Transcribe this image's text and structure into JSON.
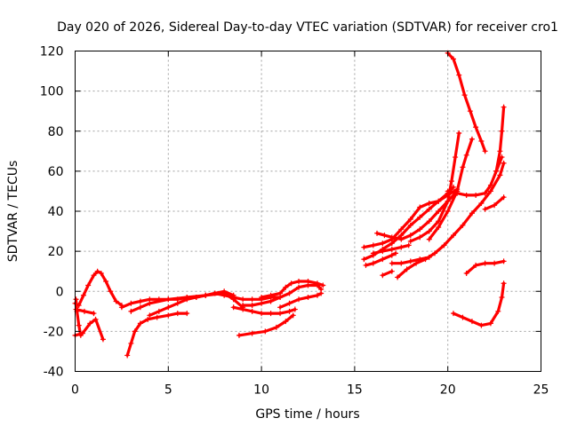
{
  "chart_data": {
    "type": "scatter",
    "title": "Day 020 of 2026, Sidereal Day-to-day VTEC variation (SDTVAR) for receiver cro1",
    "xlabel": "GPS time / hours",
    "ylabel": "SDTVAR / TECUs",
    "xlim": [
      0,
      25
    ],
    "ylim": [
      -40,
      120
    ],
    "xticks": [
      0,
      5,
      10,
      15,
      20,
      25
    ],
    "yticks": [
      -40,
      -20,
      0,
      20,
      40,
      60,
      80,
      100,
      120
    ],
    "xtick_labels": [
      "0",
      "5",
      "10",
      "15",
      "20",
      "25"
    ],
    "ytick_labels": [
      "-40",
      "-20",
      "0",
      "20",
      "40",
      "60",
      "80",
      "100",
      "120"
    ],
    "grid": true,
    "marker": "+",
    "color": "#ff0000",
    "series": [
      {
        "name": "s1",
        "x": [
          0.0,
          0.2,
          0.45,
          0.7,
          1.0,
          1.2,
          1.4,
          1.65,
          1.9,
          2.2,
          2.5
        ],
        "y": [
          -6,
          -7,
          -2,
          3,
          8,
          10,
          9,
          5,
          0,
          -5,
          -7
        ]
      },
      {
        "name": "s2",
        "x": [
          0.0,
          0.4,
          0.8,
          1.1,
          1.5
        ],
        "y": [
          -22,
          -21,
          -16,
          -14,
          -24
        ]
      },
      {
        "name": "s3",
        "x": [
          0.05,
          0.5,
          1.0
        ],
        "y": [
          -9,
          -10,
          -11
        ]
      },
      {
        "name": "s4",
        "x": [
          0.05,
          0.1,
          0.2,
          0.3
        ],
        "y": [
          -4,
          -10,
          -17,
          -22
        ]
      },
      {
        "name": "s5",
        "x": [
          2.5,
          3.0,
          3.5,
          4.0,
          4.5,
          5.0,
          5.5,
          6.0,
          6.5,
          7.0,
          7.5,
          8.0,
          8.5,
          9.0,
          9.5,
          10.0,
          10.5,
          11.0
        ],
        "y": [
          -8,
          -6,
          -5,
          -4,
          -4,
          -4,
          -4,
          -3,
          -3,
          -2,
          -1,
          -2,
          -3,
          -4,
          -4,
          -4,
          -3,
          -3
        ]
      },
      {
        "name": "s6",
        "x": [
          2.8,
          3.0,
          3.2,
          3.5,
          3.9,
          4.4,
          5.0,
          5.5,
          6.0
        ],
        "y": [
          -32,
          -26,
          -20,
          -16,
          -14,
          -13,
          -12,
          -11,
          -11
        ]
      },
      {
        "name": "s7",
        "x": [
          3.0,
          3.5,
          4.0,
          5.0,
          6.0,
          7.0,
          8.0,
          8.5,
          9.0
        ],
        "y": [
          -10,
          -8,
          -6,
          -4,
          -3,
          -2,
          -1,
          -4,
          -8
        ]
      },
      {
        "name": "s8",
        "x": [
          4.0,
          4.5,
          5.0,
          5.5,
          6.0,
          6.5,
          7.0,
          7.5,
          8.0,
          8.5
        ],
        "y": [
          -12,
          -10,
          -8,
          -6,
          -4,
          -3,
          -2,
          -1,
          0,
          -2
        ]
      },
      {
        "name": "s9",
        "x": [
          8.5,
          9.0,
          9.5,
          10.0,
          10.5,
          11.0,
          11.5,
          11.8
        ],
        "y": [
          -8,
          -9,
          -10,
          -11,
          -11,
          -11,
          -10,
          -9
        ]
      },
      {
        "name": "s10",
        "x": [
          8.8,
          9.5,
          10.2,
          10.8,
          11.3,
          11.7
        ],
        "y": [
          -22,
          -21,
          -20,
          -18,
          -15,
          -12
        ]
      },
      {
        "name": "s11",
        "x": [
          9.0,
          9.5,
          10.0,
          10.5,
          11.0,
          11.5,
          12.0,
          12.5,
          13.0,
          13.2
        ],
        "y": [
          -7,
          -7,
          -6,
          -5,
          -3,
          -1,
          2,
          3,
          3,
          1
        ]
      },
      {
        "name": "s12",
        "x": [
          10.0,
          10.5,
          11.0,
          11.3,
          11.6,
          12.0,
          12.5,
          13.0,
          13.3
        ],
        "y": [
          -3,
          -2,
          -1,
          2,
          4,
          5,
          5,
          4,
          3
        ]
      },
      {
        "name": "s13",
        "x": [
          11.0,
          11.5,
          12.0,
          12.5,
          13.0,
          13.2
        ],
        "y": [
          -8,
          -6,
          -4,
          -3,
          -2,
          -1
        ]
      },
      {
        "name": "s14",
        "x": [
          15.5,
          16.0,
          16.5,
          17.0,
          17.5,
          18.0,
          18.5,
          19.0,
          19.5,
          20.0,
          20.3
        ],
        "y": [
          16,
          18,
          21,
          24,
          28,
          33,
          37,
          41,
          45,
          49,
          52
        ]
      },
      {
        "name": "s15",
        "x": [
          15.5,
          16.0,
          16.5,
          17.0,
          17.5,
          18.0,
          18.5,
          19.0,
          19.5,
          20.0,
          20.5
        ],
        "y": [
          22,
          23,
          24,
          26,
          31,
          36,
          42,
          44,
          45,
          48,
          51
        ]
      },
      {
        "name": "s16",
        "x": [
          15.6,
          16.0,
          16.5,
          17.0,
          17.2
        ],
        "y": [
          13,
          14,
          16,
          18,
          19
        ]
      },
      {
        "name": "s17",
        "x": [
          16.0,
          16.5,
          17.0,
          17.5,
          17.9
        ],
        "y": [
          19,
          20,
          21,
          22,
          23
        ]
      },
      {
        "name": "s18",
        "x": [
          16.2,
          16.6,
          17.0,
          17.5,
          18.0,
          18.5,
          19.0,
          19.5,
          20.0,
          20.5
        ],
        "y": [
          29,
          28,
          27,
          26,
          28,
          31,
          35,
          40,
          45,
          50
        ]
      },
      {
        "name": "s19",
        "x": [
          16.5,
          17.0
        ],
        "y": [
          8,
          10
        ]
      },
      {
        "name": "s20",
        "x": [
          17.3,
          17.8,
          18.3,
          18.8,
          19.3,
          19.8,
          20.3,
          20.8,
          21.3,
          21.8,
          22.3,
          22.8,
          23.0
        ],
        "y": [
          7,
          11,
          14,
          16,
          19,
          23,
          28,
          33,
          39,
          44,
          50,
          58,
          64
        ]
      },
      {
        "name": "s21",
        "x": [
          17.0,
          17.5,
          18.0,
          18.5,
          19.0
        ],
        "y": [
          14,
          14,
          15,
          16,
          17
        ]
      },
      {
        "name": "s22",
        "x": [
          18.0,
          18.5,
          19.0,
          19.5,
          20.0,
          20.2,
          20.4,
          20.6
        ],
        "y": [
          25,
          27,
          30,
          35,
          45,
          55,
          67,
          79
        ]
      },
      {
        "name": "s23",
        "x": [
          19.0,
          19.5,
          20.0,
          20.5,
          20.8,
          21.0,
          21.3
        ],
        "y": [
          26,
          32,
          40,
          50,
          62,
          68,
          76
        ]
      },
      {
        "name": "s24",
        "x": [
          20.0,
          20.3,
          20.6,
          20.9,
          21.2,
          21.5,
          21.8,
          22.0
        ],
        "y": [
          119,
          116,
          108,
          98,
          90,
          82,
          75,
          70
        ]
      },
      {
        "name": "s25",
        "x": [
          20.0,
          20.5,
          21.0,
          21.5,
          22.0,
          22.3,
          22.6,
          22.9
        ],
        "y": [
          50,
          49,
          48,
          48,
          49,
          53,
          60,
          67
        ]
      },
      {
        "name": "s26",
        "x": [
          22.6,
          22.8,
          22.9,
          23.0
        ],
        "y": [
          60,
          70,
          80,
          92
        ]
      },
      {
        "name": "s27",
        "x": [
          21.0,
          21.5,
          22.0,
          22.5,
          23.0
        ],
        "y": [
          9,
          13,
          14,
          14,
          15
        ]
      },
      {
        "name": "s28",
        "x": [
          20.3,
          20.8,
          21.3,
          21.8,
          22.3,
          22.7,
          22.9,
          23.0
        ],
        "y": [
          -11,
          -13,
          -15,
          -17,
          -16,
          -10,
          -3,
          4
        ]
      },
      {
        "name": "s29",
        "x": [
          22.0,
          22.5,
          23.0
        ],
        "y": [
          41,
          43,
          47
        ]
      }
    ]
  }
}
